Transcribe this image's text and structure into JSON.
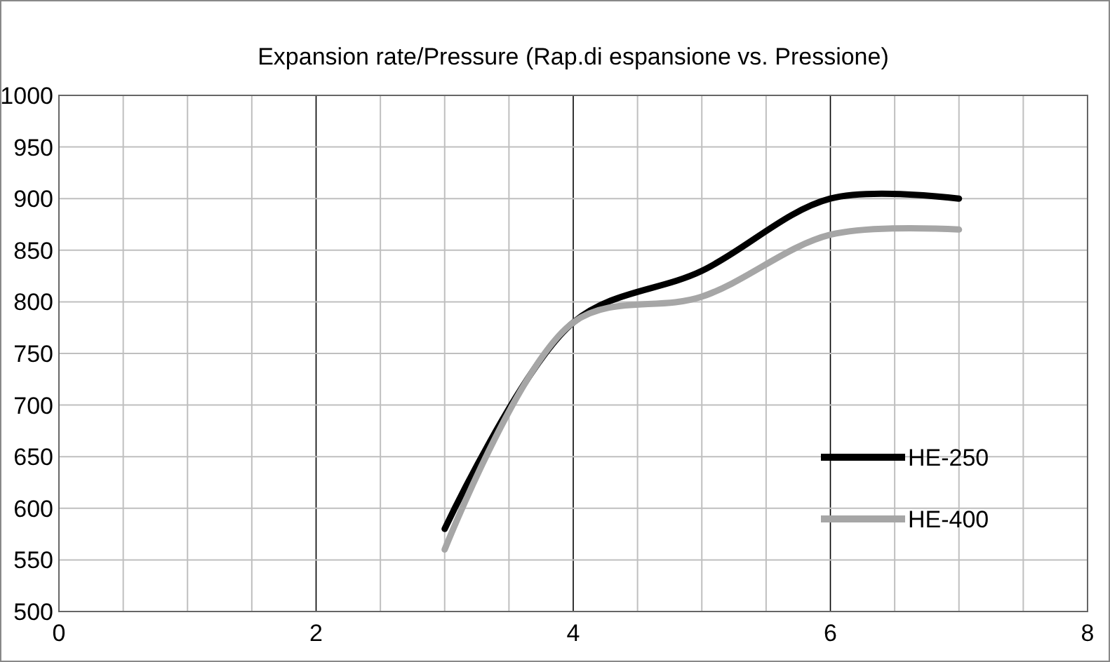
{
  "chart_data": {
    "type": "line",
    "title": "Expansion rate/Pressure (Rap.di espansione vs. Pressione)",
    "x": [
      3,
      4,
      5,
      6,
      7
    ],
    "series": [
      {
        "name": "HE-250",
        "color": "#000000",
        "values": [
          580,
          780,
          830,
          900,
          900
        ]
      },
      {
        "name": "HE-400",
        "color": "#a6a6a6",
        "values": [
          560,
          780,
          805,
          865,
          870
        ]
      }
    ],
    "xlim": [
      0,
      8
    ],
    "xticks": [
      0,
      {
        "value": 0.5,
        "label": null
      },
      {
        "value": 1,
        "label": null
      },
      {
        "value": 1.5,
        "label": null
      },
      2,
      {
        "value": 2.5,
        "label": null
      },
      {
        "value": 3,
        "label": null
      },
      {
        "value": 3.5,
        "label": null
      },
      4,
      {
        "value": 4.5,
        "label": null
      },
      {
        "value": 5,
        "label": null
      },
      {
        "value": 5.5,
        "label": null
      },
      6,
      {
        "value": 6.5,
        "label": null
      },
      {
        "value": 7,
        "label": null
      },
      {
        "value": 7.5,
        "label": null
      },
      8
    ],
    "ylim": [
      500,
      1000
    ],
    "yticks": [
      500,
      550,
      600,
      650,
      700,
      750,
      800,
      850,
      900,
      950,
      1000
    ],
    "grid": true,
    "legend": "bottom right",
    "marker": "none",
    "line_style": "solid"
  }
}
